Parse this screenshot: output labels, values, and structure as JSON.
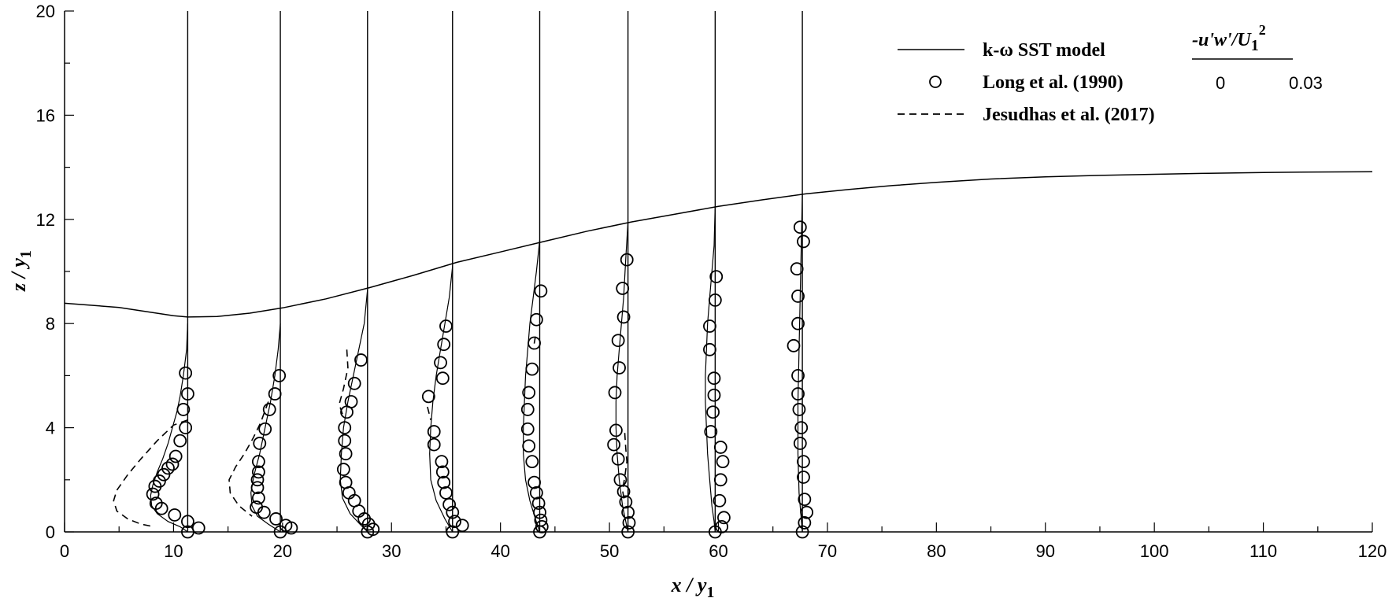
{
  "chart_data": {
    "type": "line",
    "xlabel": "x / y",
    "xlabel_sub": "1",
    "ylabel": "z / y",
    "ylabel_sub": "1",
    "xlim": [
      0,
      120
    ],
    "ylim": [
      0,
      20
    ],
    "x_ticks": [
      0,
      10,
      20,
      30,
      40,
      50,
      60,
      70,
      80,
      90,
      100,
      110,
      120
    ],
    "y_ticks": [
      0,
      4,
      8,
      12,
      16,
      20
    ],
    "grid": false,
    "legend_placement": "top-right",
    "legend": {
      "model_label": "k-ω SST model",
      "long_label": "Long et al. (1990)",
      "jesudhas_label": "Jesudhas et al. (2017)"
    },
    "profile_scale": {
      "title": "-u'w'/U",
      "title_sub": "1",
      "title_sup": "2",
      "min_label": "0",
      "max_label": "0.03",
      "min": 0,
      "max": 0.03
    },
    "stations_x": [
      11.3,
      19.8,
      27.8,
      35.6,
      43.6,
      51.7,
      59.7,
      67.7
    ],
    "free_surface": [
      [
        0,
        8.78
      ],
      [
        5,
        8.62
      ],
      [
        10,
        8.3
      ],
      [
        11.3,
        8.25
      ],
      [
        14,
        8.27
      ],
      [
        17,
        8.4
      ],
      [
        20,
        8.6
      ],
      [
        24,
        8.95
      ],
      [
        28,
        9.38
      ],
      [
        32,
        9.85
      ],
      [
        36,
        10.35
      ],
      [
        40,
        10.75
      ],
      [
        44,
        11.15
      ],
      [
        48,
        11.55
      ],
      [
        52,
        11.9
      ],
      [
        56,
        12.2
      ],
      [
        60,
        12.5
      ],
      [
        64,
        12.75
      ],
      [
        68,
        12.98
      ],
      [
        72,
        13.15
      ],
      [
        76,
        13.3
      ],
      [
        80,
        13.42
      ],
      [
        85,
        13.55
      ],
      [
        90,
        13.63
      ],
      [
        95,
        13.69
      ],
      [
        100,
        13.73
      ],
      [
        105,
        13.77
      ],
      [
        110,
        13.8
      ],
      [
        115,
        13.82
      ],
      [
        120,
        13.83
      ]
    ],
    "series": [
      {
        "name": "k-ω SST model",
        "profiles": [
          [
            [
              11.3,
              8.0
            ],
            [
              11.2,
              7.0
            ],
            [
              10.9,
              6.0
            ],
            [
              10.6,
              5.2
            ],
            [
              10.3,
              4.6
            ],
            [
              9.9,
              4.0
            ],
            [
              9.5,
              3.4
            ],
            [
              9.0,
              2.8
            ],
            [
              8.5,
              2.3
            ],
            [
              8.1,
              1.8
            ],
            [
              7.9,
              1.4
            ],
            [
              8.0,
              1.0
            ],
            [
              8.5,
              0.7
            ],
            [
              9.5,
              0.4
            ],
            [
              10.6,
              0.2
            ],
            [
              11.3,
              0.0
            ]
          ],
          [
            [
              19.8,
              8.0
            ],
            [
              19.6,
              7.0
            ],
            [
              19.3,
              6.0
            ],
            [
              18.9,
              5.0
            ],
            [
              18.4,
              4.0
            ],
            [
              17.9,
              3.0
            ],
            [
              17.4,
              2.2
            ],
            [
              17.1,
              1.5
            ],
            [
              17.2,
              1.0
            ],
            [
              17.7,
              0.6
            ],
            [
              18.7,
              0.3
            ],
            [
              19.8,
              0.0
            ]
          ],
          [
            [
              27.8,
              9.3
            ],
            [
              27.5,
              8.0
            ],
            [
              27.0,
              7.0
            ],
            [
              26.5,
              6.0
            ],
            [
              26.0,
              5.0
            ],
            [
              25.6,
              4.0
            ],
            [
              25.4,
              3.0
            ],
            [
              25.3,
              2.0
            ],
            [
              25.5,
              1.3
            ],
            [
              26.2,
              0.7
            ],
            [
              27.1,
              0.3
            ],
            [
              27.8,
              0.0
            ]
          ],
          [
            [
              35.6,
              10.2
            ],
            [
              35.3,
              9.0
            ],
            [
              34.9,
              8.0
            ],
            [
              34.5,
              7.0
            ],
            [
              34.1,
              6.0
            ],
            [
              33.8,
              5.0
            ],
            [
              33.6,
              4.0
            ],
            [
              33.5,
              3.0
            ],
            [
              33.6,
              2.0
            ],
            [
              34.1,
              1.2
            ],
            [
              34.9,
              0.5
            ],
            [
              35.6,
              0.0
            ]
          ],
          [
            [
              43.6,
              11.2
            ],
            [
              43.3,
              10.0
            ],
            [
              43.0,
              9.0
            ],
            [
              42.7,
              8.0
            ],
            [
              42.5,
              7.0
            ],
            [
              42.3,
              6.0
            ],
            [
              42.2,
              5.0
            ],
            [
              42.1,
              4.0
            ],
            [
              42.1,
              3.0
            ],
            [
              42.3,
              2.0
            ],
            [
              42.7,
              1.2
            ],
            [
              43.2,
              0.5
            ],
            [
              43.6,
              0.0
            ]
          ],
          [
            [
              51.7,
              11.9
            ],
            [
              51.5,
              10.5
            ],
            [
              51.3,
              9.0
            ],
            [
              51.1,
              8.0
            ],
            [
              50.9,
              7.0
            ],
            [
              50.7,
              6.0
            ],
            [
              50.6,
              5.0
            ],
            [
              50.6,
              4.0
            ],
            [
              50.7,
              3.0
            ],
            [
              50.9,
              2.0
            ],
            [
              51.2,
              1.0
            ],
            [
              51.5,
              0.4
            ],
            [
              51.7,
              0.0
            ]
          ],
          [
            [
              59.7,
              12.5
            ],
            [
              59.6,
              11.0
            ],
            [
              59.4,
              10.0
            ],
            [
              59.2,
              9.0
            ],
            [
              59.0,
              8.0
            ],
            [
              58.9,
              7.0
            ],
            [
              58.8,
              6.0
            ],
            [
              58.8,
              5.0
            ],
            [
              58.9,
              4.0
            ],
            [
              59.0,
              3.0
            ],
            [
              59.2,
              2.0
            ],
            [
              59.4,
              1.0
            ],
            [
              59.6,
              0.4
            ],
            [
              59.7,
              0.0
            ]
          ],
          [
            [
              67.7,
              13.0
            ],
            [
              67.6,
              11.0
            ],
            [
              67.5,
              9.0
            ],
            [
              67.4,
              7.0
            ],
            [
              67.3,
              5.0
            ],
            [
              67.3,
              3.0
            ],
            [
              67.4,
              1.5
            ],
            [
              67.6,
              0.5
            ],
            [
              67.7,
              0.0
            ]
          ]
        ]
      },
      {
        "name": "Long et al. (1990)",
        "points": [
          [
            11.1,
            6.1
          ],
          [
            11.3,
            5.3
          ],
          [
            10.9,
            4.7
          ],
          [
            11.1,
            4.0
          ],
          [
            10.6,
            3.5
          ],
          [
            10.2,
            2.9
          ],
          [
            9.9,
            2.6
          ],
          [
            9.5,
            2.45
          ],
          [
            9.1,
            2.2
          ],
          [
            8.7,
            1.95
          ],
          [
            8.3,
            1.75
          ],
          [
            8.1,
            1.45
          ],
          [
            8.4,
            1.1
          ],
          [
            8.9,
            0.9
          ],
          [
            10.1,
            0.65
          ],
          [
            11.3,
            0.4
          ],
          [
            12.3,
            0.15
          ],
          [
            11.3,
            0.0
          ],
          [
            19.7,
            6.0
          ],
          [
            19.3,
            5.3
          ],
          [
            18.8,
            4.7
          ],
          [
            18.4,
            3.95
          ],
          [
            17.9,
            3.4
          ],
          [
            17.8,
            2.7
          ],
          [
            17.8,
            2.3
          ],
          [
            17.7,
            2.0
          ],
          [
            17.7,
            1.7
          ],
          [
            17.8,
            1.3
          ],
          [
            17.6,
            0.95
          ],
          [
            18.3,
            0.75
          ],
          [
            19.4,
            0.5
          ],
          [
            20.3,
            0.25
          ],
          [
            20.8,
            0.15
          ],
          [
            19.8,
            0.0
          ],
          [
            27.2,
            6.6
          ],
          [
            26.6,
            5.7
          ],
          [
            26.3,
            5.0
          ],
          [
            25.9,
            4.6
          ],
          [
            25.7,
            4.0
          ],
          [
            25.7,
            3.5
          ],
          [
            25.8,
            3.0
          ],
          [
            25.6,
            2.4
          ],
          [
            25.8,
            1.9
          ],
          [
            26.1,
            1.5
          ],
          [
            26.6,
            1.2
          ],
          [
            27.0,
            0.8
          ],
          [
            27.5,
            0.5
          ],
          [
            27.9,
            0.3
          ],
          [
            28.3,
            0.1
          ],
          [
            27.8,
            0.0
          ],
          [
            35.0,
            7.9
          ],
          [
            34.8,
            7.2
          ],
          [
            34.5,
            6.5
          ],
          [
            34.7,
            5.9
          ],
          [
            33.4,
            5.2
          ],
          [
            33.9,
            3.85
          ],
          [
            33.9,
            3.35
          ],
          [
            34.6,
            2.7
          ],
          [
            34.7,
            2.3
          ],
          [
            34.8,
            1.9
          ],
          [
            35.0,
            1.5
          ],
          [
            35.3,
            1.05
          ],
          [
            35.6,
            0.75
          ],
          [
            35.8,
            0.4
          ],
          [
            36.5,
            0.25
          ],
          [
            35.6,
            0.0
          ],
          [
            43.7,
            9.25
          ],
          [
            43.3,
            8.15
          ],
          [
            43.1,
            7.25
          ],
          [
            42.9,
            6.25
          ],
          [
            42.6,
            5.35
          ],
          [
            42.5,
            4.7
          ],
          [
            42.5,
            3.95
          ],
          [
            42.6,
            3.3
          ],
          [
            42.9,
            2.7
          ],
          [
            43.1,
            1.9
          ],
          [
            43.3,
            1.5
          ],
          [
            43.5,
            1.1
          ],
          [
            43.6,
            0.75
          ],
          [
            43.7,
            0.45
          ],
          [
            43.8,
            0.2
          ],
          [
            43.6,
            0.0
          ],
          [
            51.6,
            10.45
          ],
          [
            51.2,
            9.35
          ],
          [
            51.3,
            8.25
          ],
          [
            50.8,
            7.35
          ],
          [
            50.9,
            6.3
          ],
          [
            50.5,
            5.35
          ],
          [
            50.6,
            3.9
          ],
          [
            50.4,
            3.35
          ],
          [
            50.8,
            2.8
          ],
          [
            51.0,
            2.0
          ],
          [
            51.3,
            1.55
          ],
          [
            51.5,
            1.15
          ],
          [
            51.7,
            0.75
          ],
          [
            51.8,
            0.35
          ],
          [
            51.7,
            0.0
          ],
          [
            59.8,
            9.8
          ],
          [
            59.7,
            8.9
          ],
          [
            59.2,
            7.9
          ],
          [
            59.2,
            7.0
          ],
          [
            59.6,
            5.9
          ],
          [
            59.6,
            5.25
          ],
          [
            59.5,
            4.6
          ],
          [
            59.3,
            3.85
          ],
          [
            60.2,
            3.25
          ],
          [
            60.4,
            2.7
          ],
          [
            60.2,
            2.0
          ],
          [
            60.1,
            1.2
          ],
          [
            60.5,
            0.55
          ],
          [
            60.3,
            0.2
          ],
          [
            59.7,
            0.0
          ],
          [
            67.5,
            11.7
          ],
          [
            67.8,
            11.15
          ],
          [
            67.2,
            10.1
          ],
          [
            67.3,
            9.05
          ],
          [
            67.3,
            8.0
          ],
          [
            66.9,
            7.15
          ],
          [
            67.3,
            6.0
          ],
          [
            67.3,
            5.3
          ],
          [
            67.4,
            4.7
          ],
          [
            67.6,
            4.0
          ],
          [
            67.5,
            3.4
          ],
          [
            67.8,
            2.7
          ],
          [
            67.8,
            2.1
          ],
          [
            67.9,
            1.25
          ],
          [
            68.1,
            0.75
          ],
          [
            67.9,
            0.35
          ],
          [
            67.7,
            0.0
          ]
        ]
      },
      {
        "name": "Jesudhas et al. (2017)",
        "profiles": [
          [
            [
              11.3,
              4.3
            ],
            [
              10.0,
              4.1
            ],
            [
              8.5,
              3.5
            ],
            [
              7.0,
              2.8
            ],
            [
              5.8,
              2.2
            ],
            [
              4.8,
              1.6
            ],
            [
              4.5,
              1.2
            ],
            [
              4.8,
              0.8
            ],
            [
              5.8,
              0.5
            ],
            [
              7.0,
              0.3
            ],
            [
              8.2,
              0.2
            ]
          ],
          [
            [
              18.7,
              5.0
            ],
            [
              18.0,
              4.2
            ],
            [
              17.3,
              3.6
            ],
            [
              16.5,
              3.0
            ],
            [
              15.7,
              2.5
            ],
            [
              15.1,
              2.0
            ],
            [
              15.2,
              1.5
            ],
            [
              16.0,
              1.0
            ],
            [
              17.2,
              0.6
            ]
          ],
          [
            [
              25.9,
              7.0
            ],
            [
              26.0,
              6.3
            ],
            [
              25.6,
              5.5
            ],
            [
              25.2,
              4.9
            ],
            [
              25.6,
              4.4
            ]
          ],
          [
            [
              33.3,
              4.8
            ],
            [
              33.6,
              4.3
            ]
          ],
          [
            [
              43.2,
              7.5
            ],
            [
              43.0,
              7.0
            ]
          ],
          [
            [
              51.4,
              3.8
            ],
            [
              51.5,
              3.2
            ],
            [
              51.6,
              2.7
            ],
            [
              51.4,
              2.1
            ],
            [
              51.2,
              1.6
            ],
            [
              51.4,
              1.1
            ]
          ]
        ]
      }
    ]
  }
}
